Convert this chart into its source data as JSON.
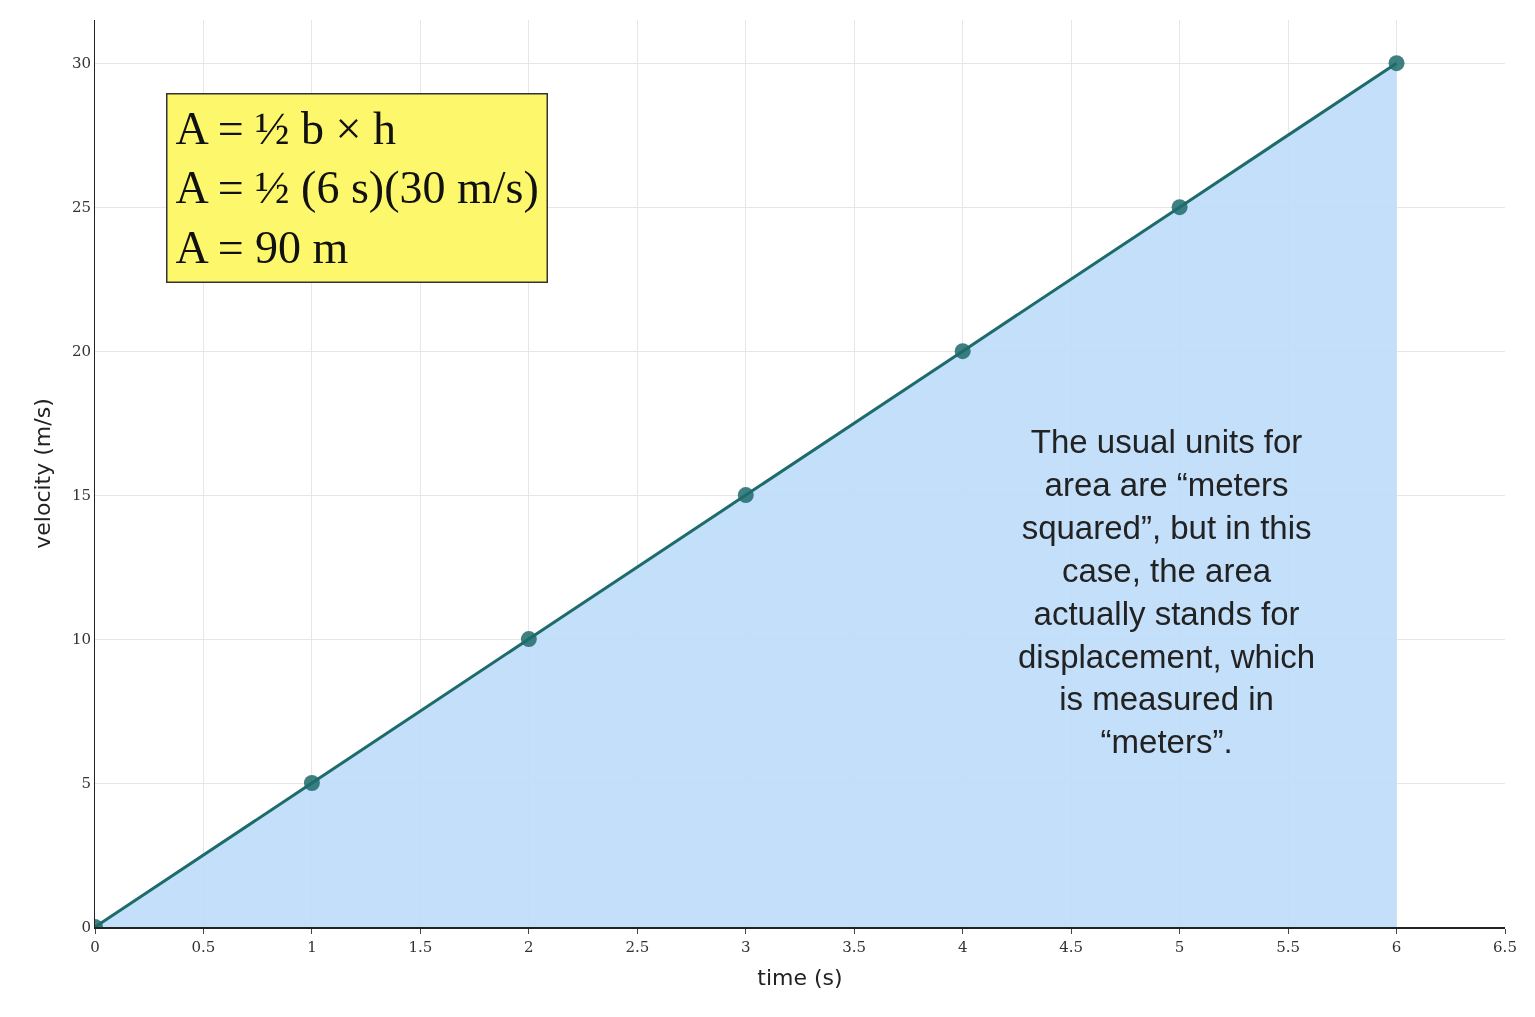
{
  "chart_data": {
    "type": "area",
    "xlabel": "time (s)",
    "ylabel": "velocity (m/s)",
    "x": [
      0,
      1,
      2,
      3,
      4,
      5,
      6
    ],
    "series": [
      {
        "color": "#1d6b6b",
        "values": [
          0,
          5,
          10,
          15,
          20,
          25,
          30
        ]
      }
    ],
    "xlim": [
      0,
      6.5
    ],
    "xticks": [
      0,
      0.5,
      1,
      1.5,
      2,
      2.5,
      3,
      3.5,
      4,
      4.5,
      5,
      5.5,
      6,
      6.5
    ],
    "ylim": [
      0,
      31.5
    ],
    "yticks": [
      0,
      5,
      10,
      15,
      20,
      25,
      30
    ],
    "grid": true,
    "marker": "circle",
    "line_style": "solid",
    "annotations": [
      "A = ½ b × h\nA = ½ (6 s)(30 m/s)\nA = 90 m",
      "The usual units for\narea are “meters\nsquared”, but in this\ncase, the area\nactually stands for\ndisplacement, which\nis measured in\n“meters”."
    ]
  }
}
